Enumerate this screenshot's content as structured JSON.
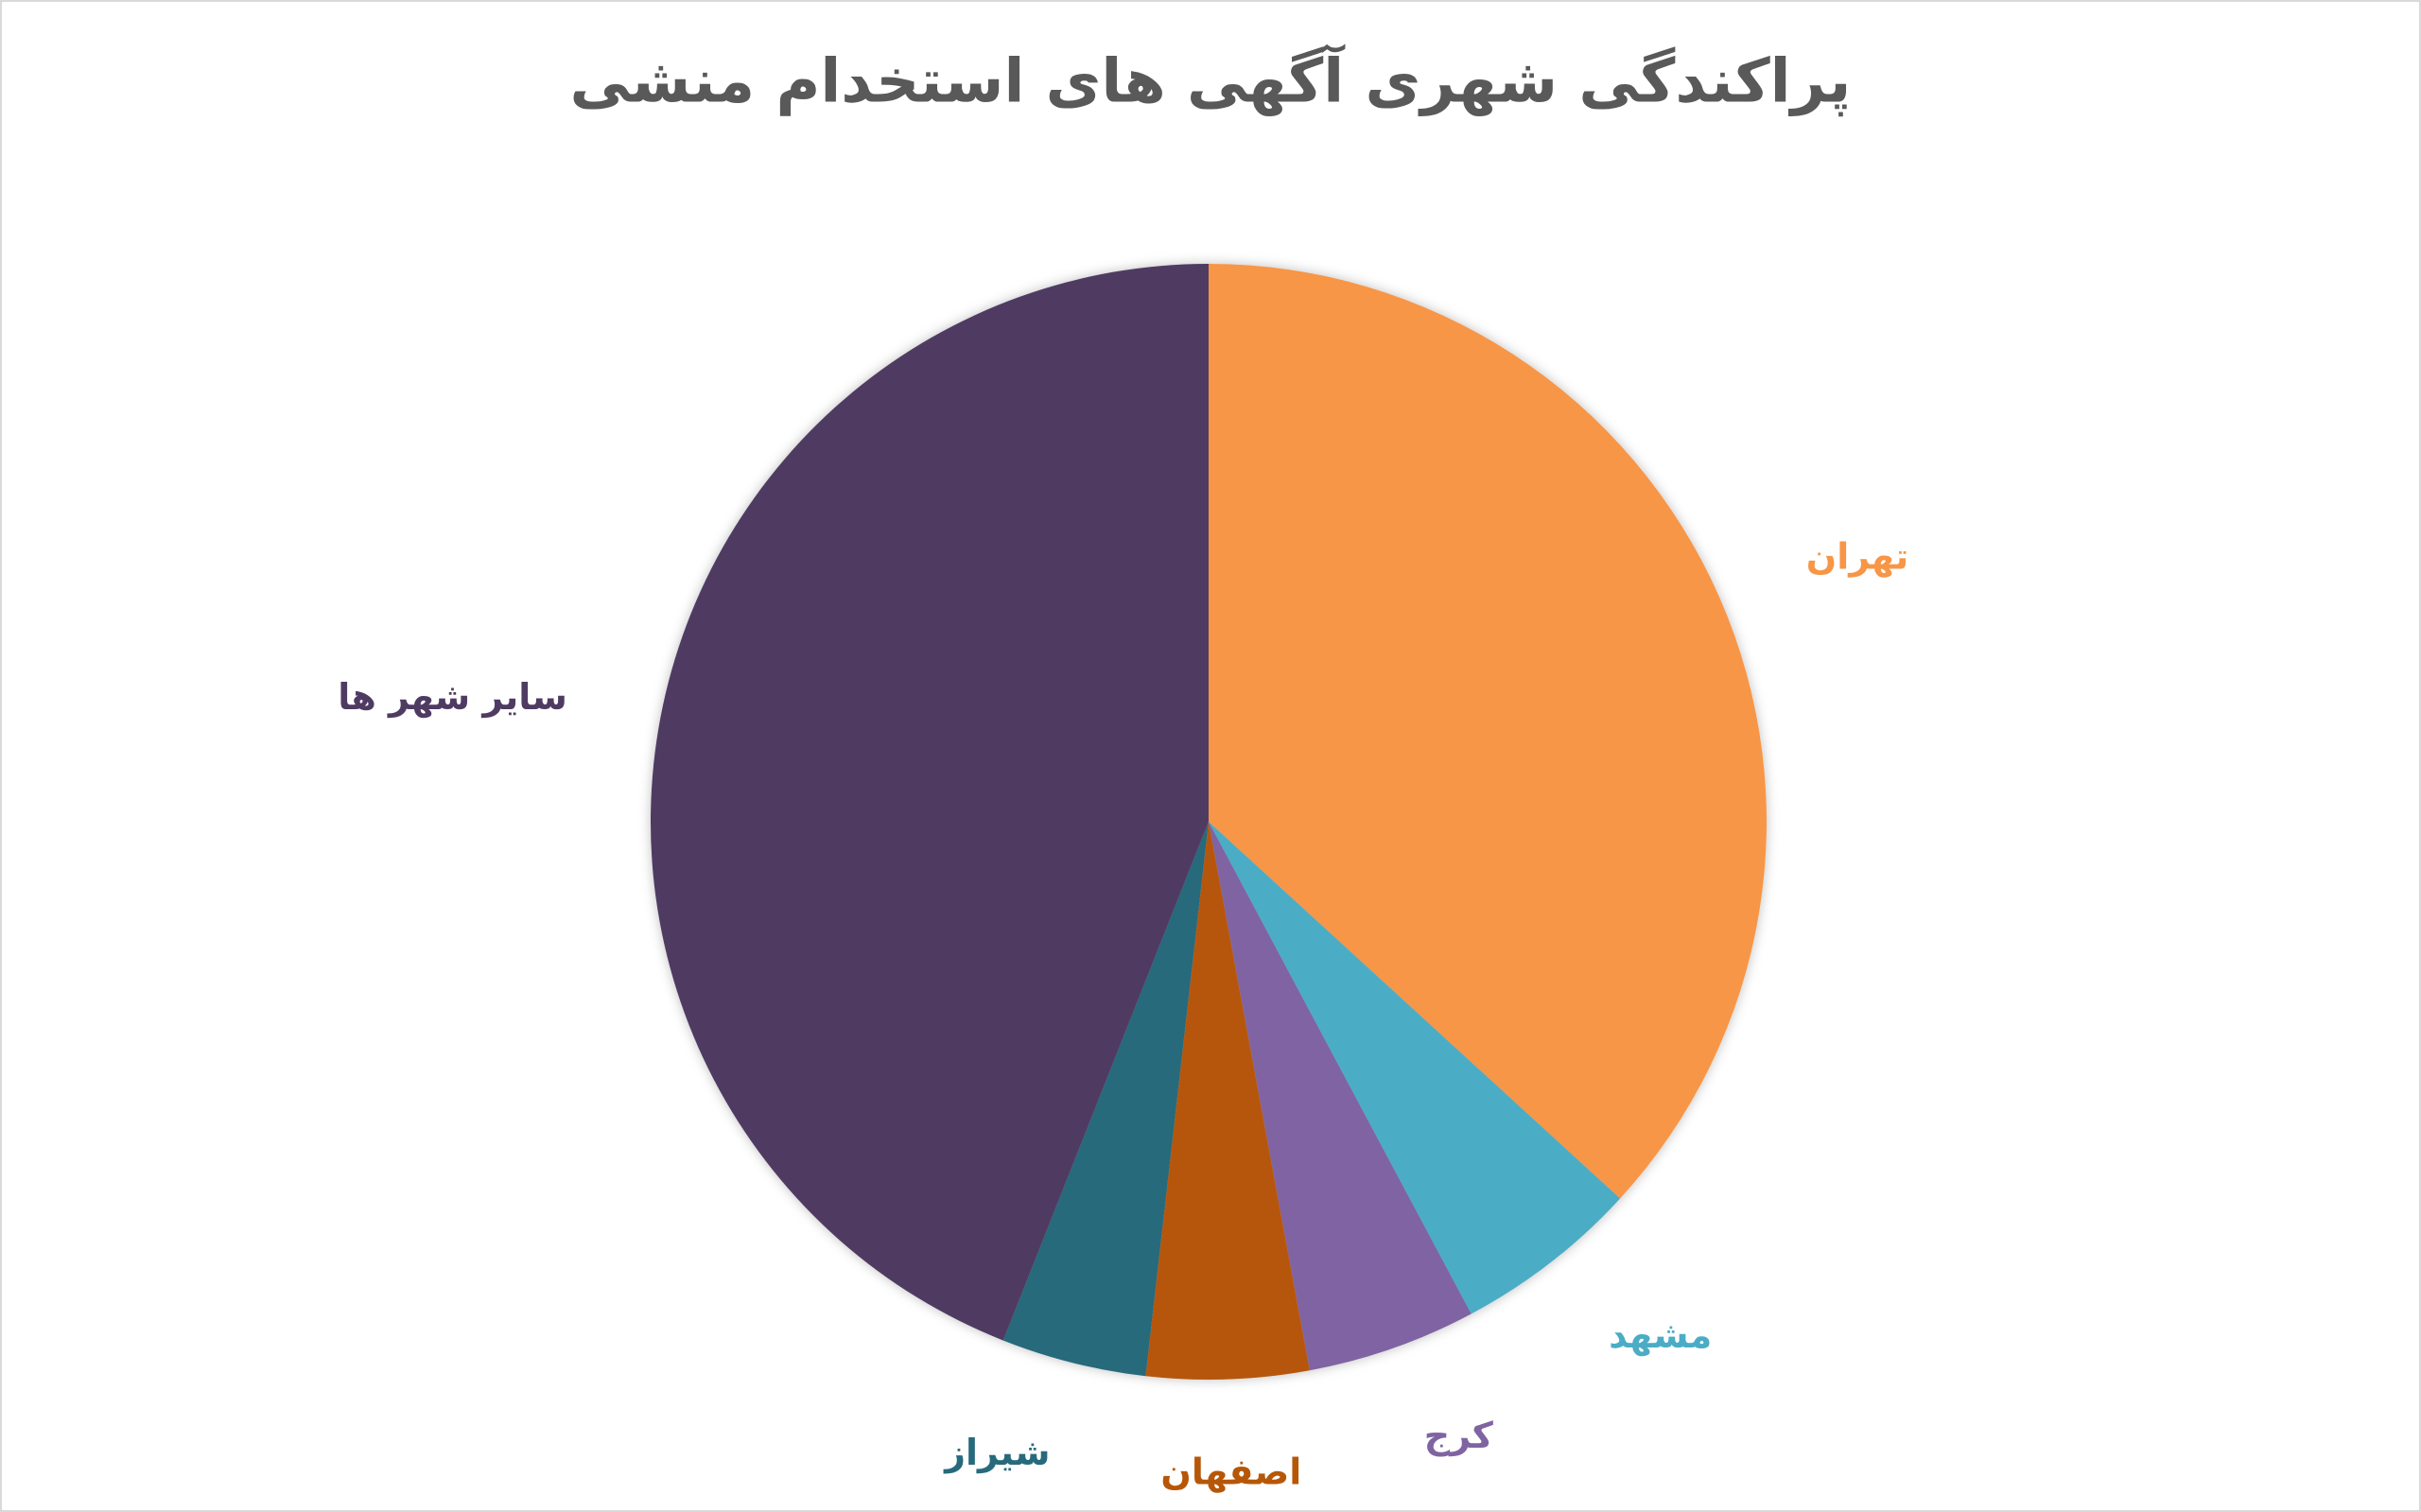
{
  "chart_data": {
    "type": "pie",
    "title": "پراکندگی شهری آگهی های استخدام منشی",
    "categories": [
      "تهران",
      "مشهد",
      "کرج",
      "اصفهان",
      "شیراز",
      "سایر شهر ها"
    ],
    "values": [
      36.8,
      5.4,
      4.9,
      4.7,
      4.2,
      44.0
    ],
    "colors": [
      "#f79646",
      "#4bacc6",
      "#8064a2",
      "#b65708",
      "#276a7c",
      "#4f3b62"
    ]
  }
}
